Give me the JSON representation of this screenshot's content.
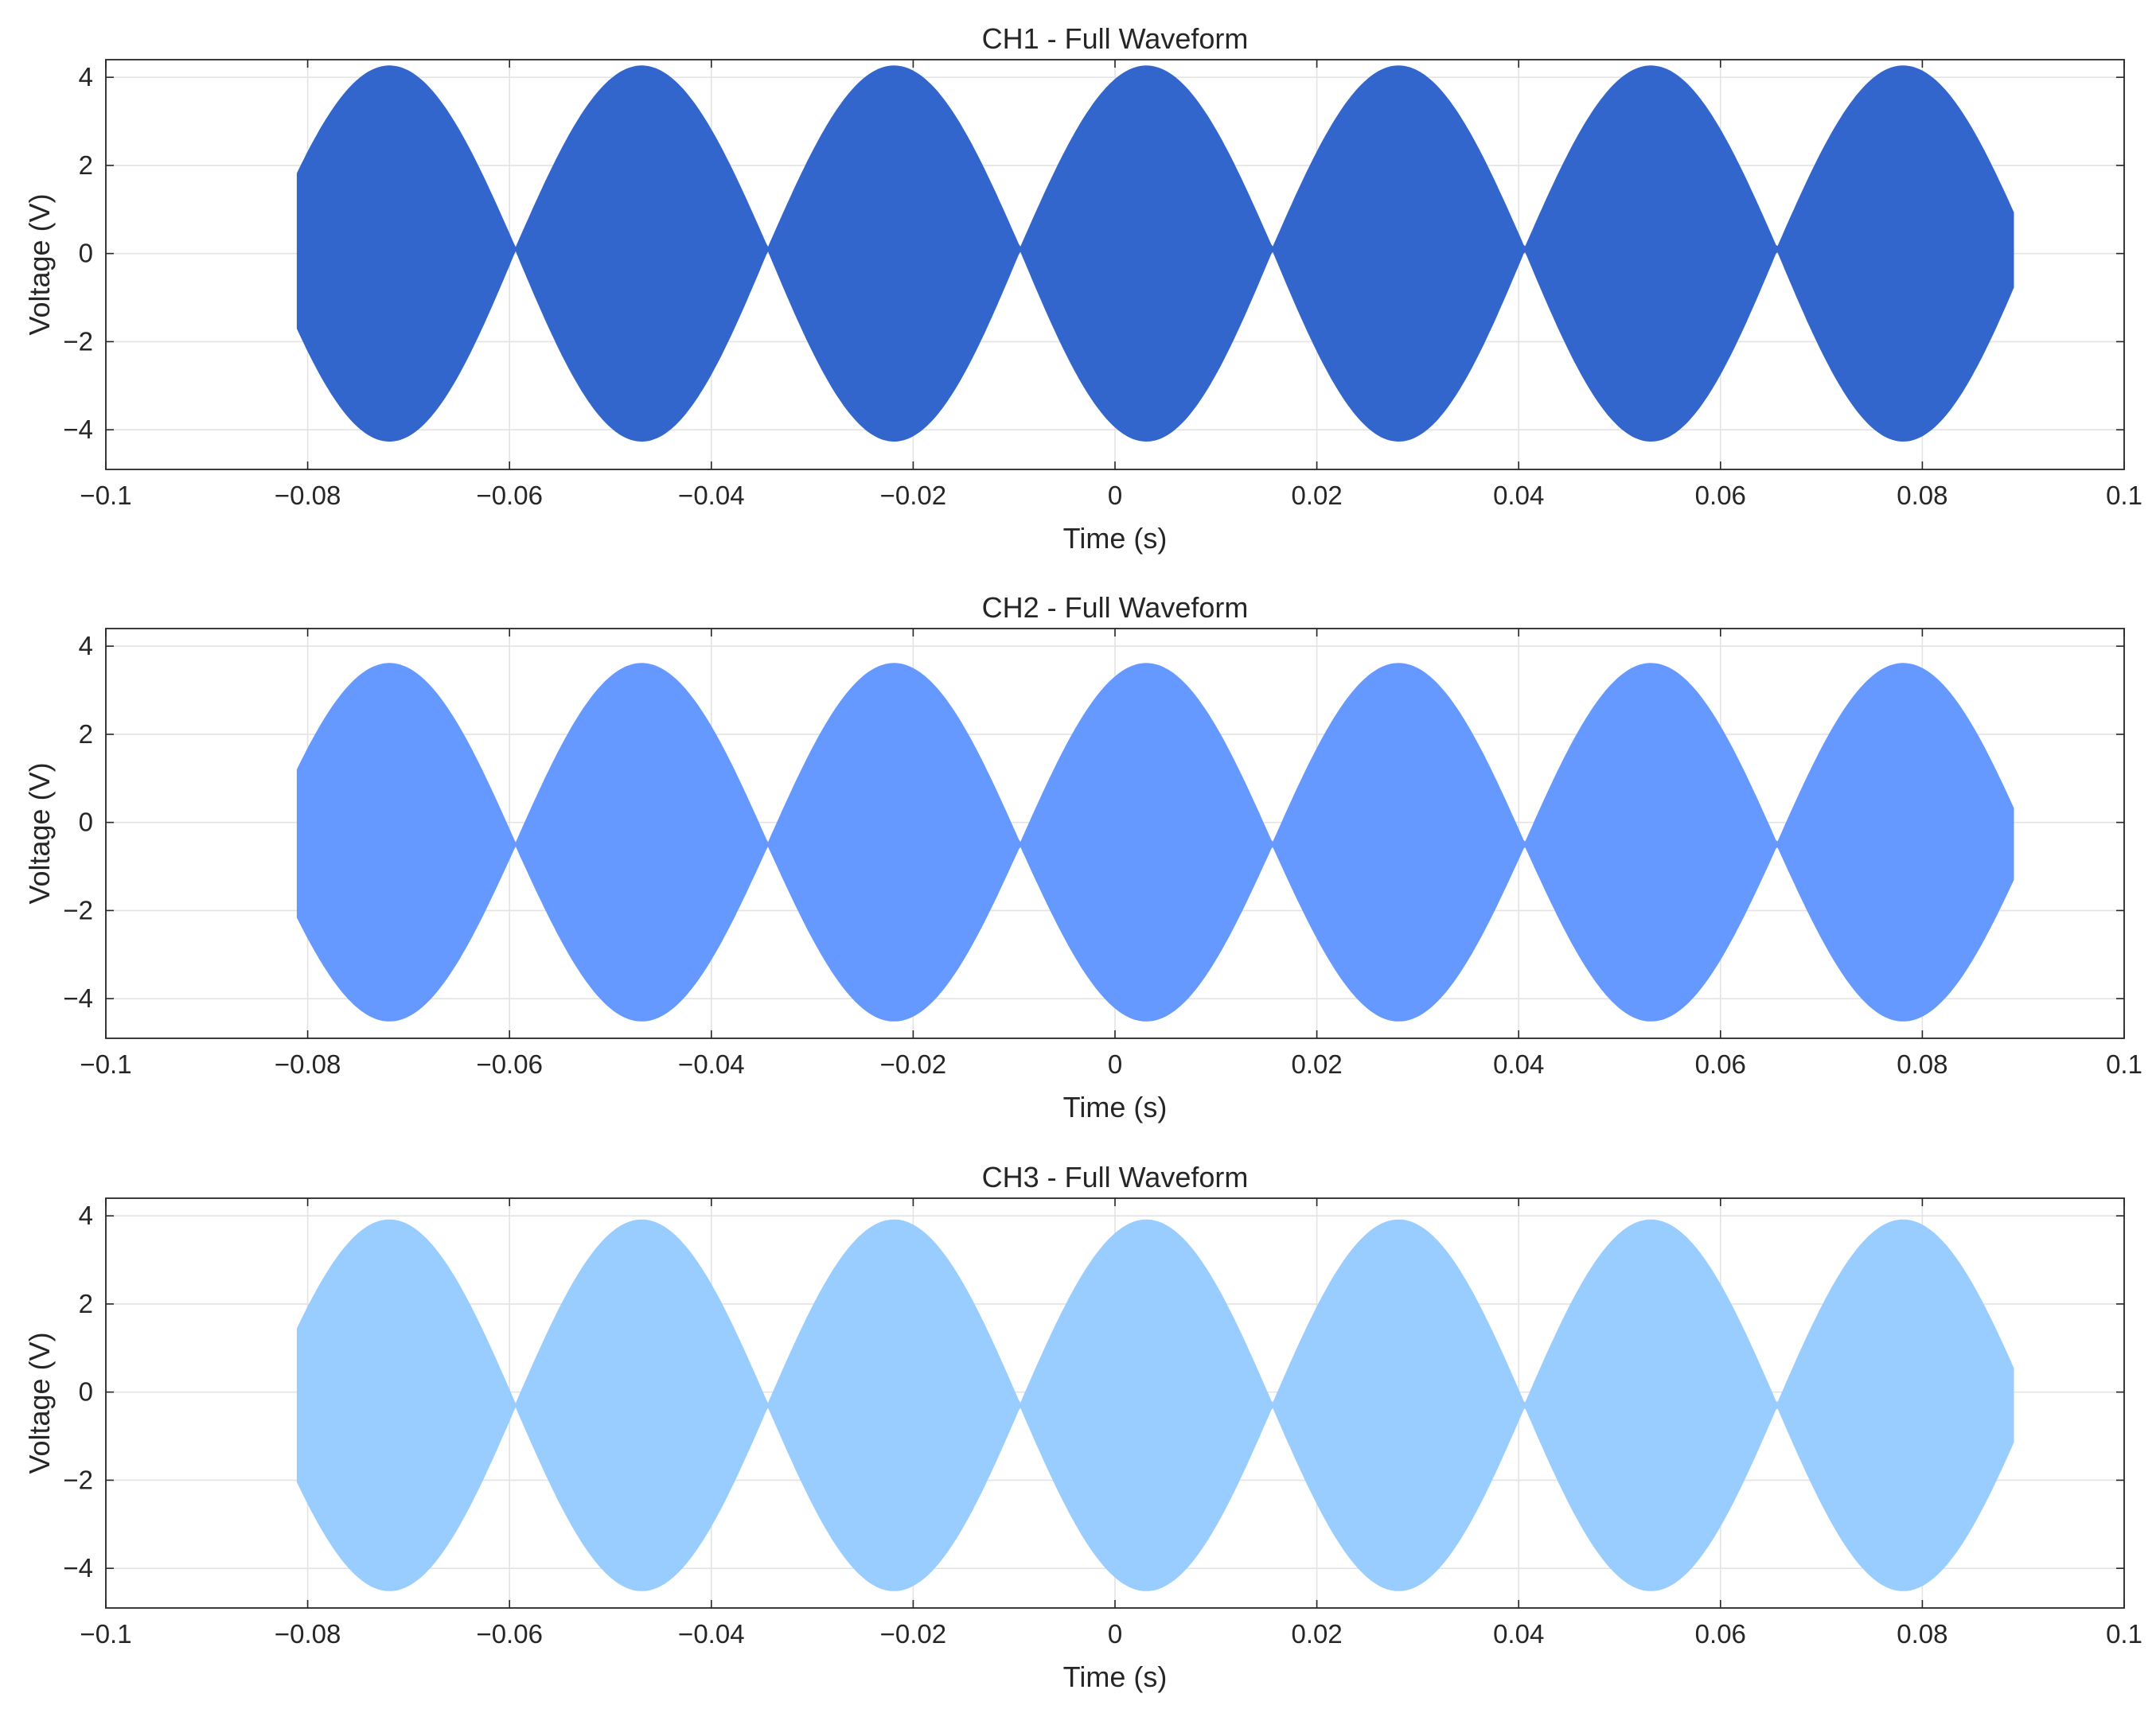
{
  "chart_data": [
    {
      "type": "area",
      "title": "CH1 - Full Waveform",
      "xlabel": "Time (s)",
      "ylabel": "Voltage (V)",
      "xlim": [
        -0.1,
        0.1
      ],
      "ylim": [
        -4.9,
        4.4
      ],
      "xticks": [
        -0.1,
        -0.08,
        -0.06,
        -0.04,
        -0.02,
        0,
        0.02,
        0.04,
        0.06,
        0.08,
        0.1
      ],
      "xtick_labels": [
        "−0.1",
        "−0.08",
        "−0.06",
        "−0.04",
        "−0.02",
        "0",
        "0.02",
        "0.04",
        "0.06",
        "0.08",
        "0.1"
      ],
      "yticks": [
        -4,
        -2,
        0,
        2,
        4
      ],
      "ytick_labels": [
        "−4",
        "−2",
        "0",
        "2",
        "4"
      ],
      "grid": true,
      "color": "#3366CC",
      "series": [
        {
          "time_range": [
            -0.081,
            0.089
          ],
          "amplitude_peak": 4.25,
          "envelope_zero_times": [
            -0.0594,
            -0.0344,
            -0.0094,
            0.0156,
            0.0406,
            0.0656
          ],
          "envelope_crossing_level": 0.1
        }
      ]
    },
    {
      "type": "area",
      "title": "CH2 - Full Waveform",
      "xlabel": "Time (s)",
      "ylabel": "Voltage (V)",
      "xlim": [
        -0.1,
        0.1
      ],
      "ylim": [
        -4.9,
        4.4
      ],
      "xticks": [
        -0.1,
        -0.08,
        -0.06,
        -0.04,
        -0.02,
        0,
        0.02,
        0.04,
        0.06,
        0.08,
        0.1
      ],
      "xtick_labels": [
        "−0.1",
        "−0.08",
        "−0.06",
        "−0.04",
        "−0.02",
        "0",
        "0.02",
        "0.04",
        "0.06",
        "0.08",
        "0.1"
      ],
      "yticks": [
        -4,
        -2,
        0,
        2,
        4
      ],
      "ytick_labels": [
        "−4",
        "−2",
        "0",
        "2",
        "4"
      ],
      "grid": true,
      "color": "#6699FF",
      "series": [
        {
          "time_range": [
            -0.081,
            0.089
          ],
          "upper_peak": 3.6,
          "lower_peak": -4.5,
          "envelope_zero_times": [
            -0.0594,
            -0.0344,
            -0.0094,
            0.0156,
            0.0406,
            0.0656
          ],
          "envelope_crossing_level": -0.5
        }
      ]
    },
    {
      "type": "area",
      "title": "CH3 - Full Waveform",
      "xlabel": "Time (s)",
      "ylabel": "Voltage (V)",
      "xlim": [
        -0.1,
        0.1
      ],
      "ylim": [
        -4.9,
        4.4
      ],
      "xticks": [
        -0.1,
        -0.08,
        -0.06,
        -0.04,
        -0.02,
        0,
        0.02,
        0.04,
        0.06,
        0.08,
        0.1
      ],
      "xtick_labels": [
        "−0.1",
        "−0.08",
        "−0.06",
        "−0.04",
        "−0.02",
        "0",
        "0.02",
        "0.04",
        "0.06",
        "0.08",
        "0.1"
      ],
      "yticks": [
        -4,
        -2,
        0,
        2,
        4
      ],
      "ytick_labels": [
        "−4",
        "−2",
        "0",
        "2",
        "4"
      ],
      "grid": true,
      "color": "#99CCFF",
      "series": [
        {
          "time_range": [
            -0.081,
            0.089
          ],
          "upper_peak": 3.9,
          "lower_peak": -4.5,
          "envelope_zero_times": [
            -0.0594,
            -0.0344,
            -0.0094,
            0.0156,
            0.0406,
            0.0656
          ],
          "envelope_crossing_level": -0.3
        }
      ]
    }
  ]
}
